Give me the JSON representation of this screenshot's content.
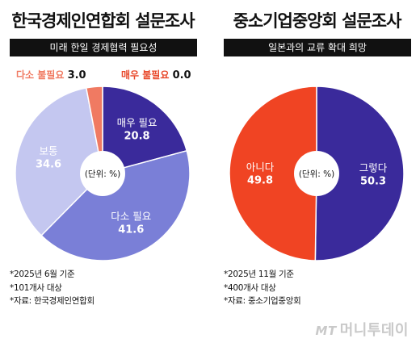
{
  "chart_data": [
    {
      "type": "pie",
      "title": "한국경제인연합회 설문조사",
      "subtitle": "미래 한일 경제협력 필요성",
      "center_label": "(단위: %)",
      "slices": [
        {
          "label": "매우 필요",
          "value": 20.8,
          "color": "#3a2a9b",
          "text_color": "#ffffff"
        },
        {
          "label": "다소 필요",
          "value": 41.6,
          "color": "#7a7fd7",
          "text_color": "#ffffff"
        },
        {
          "label": "보통",
          "value": 34.6,
          "color": "#c4c7f0",
          "text_color": "#ffffff"
        },
        {
          "label": "다소 불필요",
          "value": 3.0,
          "color": "#f07a62",
          "text_color": "#f07a62"
        },
        {
          "label": "매우 불필요",
          "value": 0.0,
          "color": "#e8482a",
          "text_color": "#e8482a"
        }
      ],
      "outside_labels": [
        {
          "label": "다소 불필요",
          "value": "3.0"
        },
        {
          "label": "매우 불필요",
          "value": "0.0"
        }
      ],
      "inside_labels": [
        {
          "label": "매우 필요",
          "value": "20.8"
        },
        {
          "label": "다소 필요",
          "value": "41.6"
        },
        {
          "label": "보통",
          "value": "34.6"
        }
      ],
      "notes": [
        "*2025년 6월 기준",
        "*101개사 대상",
        "*자료: 한국경제인연합회"
      ]
    },
    {
      "type": "pie",
      "title": "중소기업중앙회 설문조사",
      "subtitle": "일본과의 교류 확대 희망",
      "center_label": "(단위: %)",
      "slices": [
        {
          "label": "그렇다",
          "value": 50.3,
          "color": "#3a2a9b",
          "text_color": "#ffffff"
        },
        {
          "label": "아니다",
          "value": 49.8,
          "color": "#f04423",
          "text_color": "#ffffff"
        }
      ],
      "inside_labels": [
        {
          "label": "그렇다",
          "value": "50.3"
        },
        {
          "label": "아니다",
          "value": "49.8"
        }
      ],
      "notes": [
        "*2025년 11월 기준",
        "*400개사 대상",
        "*자료: 중소기업중앙회"
      ]
    }
  ],
  "watermark": {
    "mt": "MT",
    "text": "머니투데이"
  }
}
